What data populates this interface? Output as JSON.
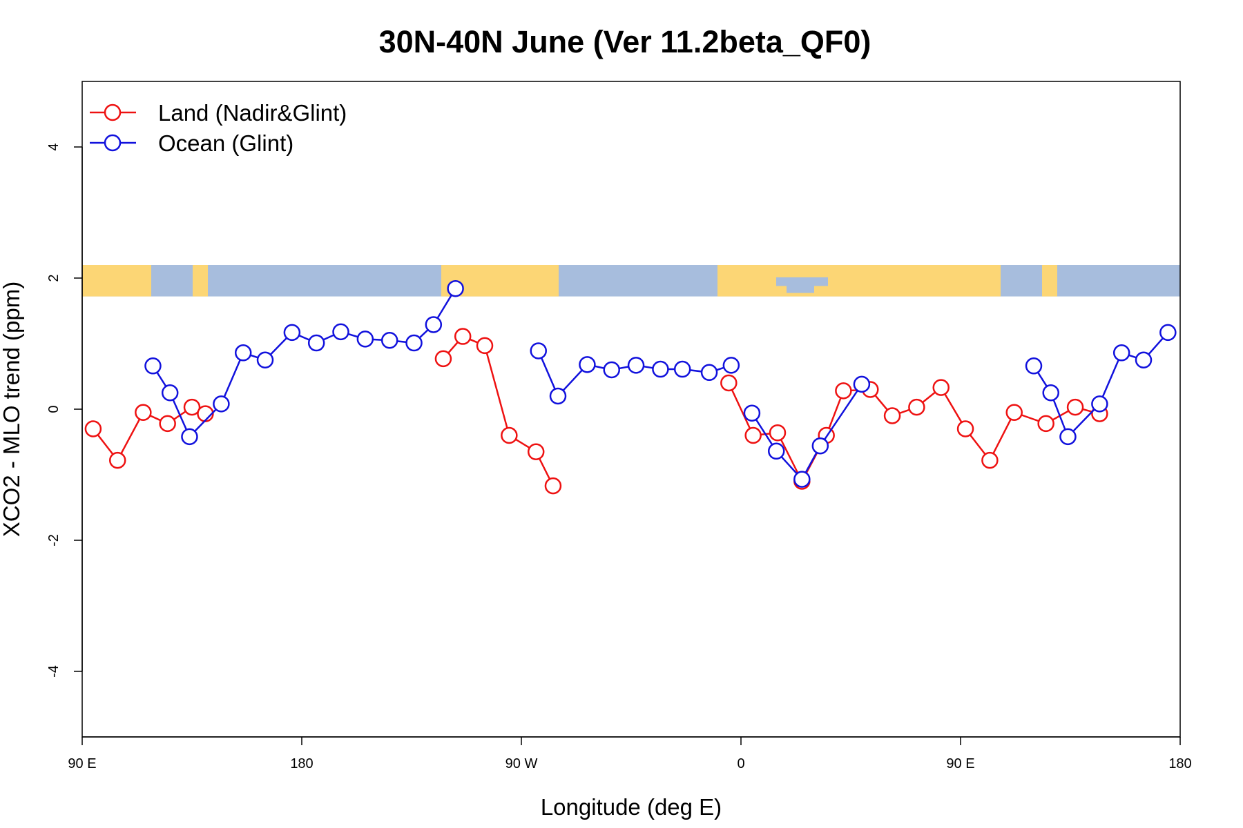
{
  "chart_data": {
    "type": "line",
    "title": "30N-40N June (Ver 11.2beta_QF0)",
    "xlabel": "Longitude (deg E)",
    "ylabel": "XCO2 - MLO trend (ppm)",
    "xlim": [
      90,
      540
    ],
    "ylim": [
      -5,
      5
    ],
    "x_ticks": [
      {
        "value": 90,
        "label": "90 E"
      },
      {
        "value": 180,
        "label": "180"
      },
      {
        "value": 270,
        "label": "90 W"
      },
      {
        "value": 360,
        "label": "0"
      },
      {
        "value": 450,
        "label": "90 E"
      },
      {
        "value": 540,
        "label": "180"
      }
    ],
    "y_ticks": [
      {
        "value": -4,
        "label": "-4"
      },
      {
        "value": -2,
        "label": "-2"
      },
      {
        "value": 0,
        "label": "0"
      },
      {
        "value": 2,
        "label": "2"
      },
      {
        "value": 4,
        "label": "4"
      }
    ],
    "grid": false,
    "legend_position": "top-left",
    "map_strip": {
      "y_range": [
        1.72,
        2.25
      ],
      "land_color": "#FCD675",
      "ocean_color": "#A7BDDD"
    },
    "series": [
      {
        "name": "Land (Nadir&Glint)",
        "color": "#EE1111",
        "segments": [
          {
            "x": [
              94.5,
              104.5,
              115,
              125,
              135,
              140.5
            ],
            "y": [
              -0.3,
              -0.78,
              -0.05,
              -0.22,
              0.03,
              -0.07
            ]
          },
          {
            "x": [
              238,
              246,
              255,
              265,
              276,
              283
            ],
            "y": [
              0.77,
              1.11,
              0.97,
              -0.4,
              -0.65,
              -1.17
            ]
          },
          {
            "x": [
              355,
              365,
              375,
              385,
              395,
              402,
              413,
              422,
              432,
              442,
              452,
              462,
              472,
              485,
              497,
              507,
              513,
              519
            ],
            "y": [
              0.4,
              -0.4,
              -0.36,
              -1.1,
              -0.4,
              0.28,
              0.3,
              -0.1,
              0.03,
              0.33,
              -0.3,
              -0.78,
              -0.05,
              -0.22,
              0.03,
              -0.07,
              null,
              null
            ]
          }
        ]
      },
      {
        "name": "Ocean (Glint)",
        "color": "#1111DD",
        "segments": [
          {
            "x": [
              119,
              126,
              134,
              147,
              156,
              165,
              176,
              186,
              196,
              206,
              216,
              226,
              234,
              243
            ],
            "y": [
              0.66,
              0.25,
              -0.42,
              0.08,
              0.86,
              0.75,
              1.17,
              1.01,
              1.18,
              1.07,
              1.05,
              1.01,
              1.29,
              1.84
            ]
          },
          {
            "x": [
              277,
              285,
              297,
              307,
              317,
              327,
              336,
              347,
              356
            ],
            "y": [
              0.89,
              0.2,
              0.68,
              0.6,
              0.67,
              0.61,
              0.61,
              0.56,
              0.67
            ]
          },
          {
            "x": [
              364.5,
              374.5,
              385,
              392.5,
              409.5
            ],
            "y": [
              -0.06,
              -0.64,
              -1.07,
              -0.56,
              0.38
            ]
          },
          {
            "x": [
              480,
              487,
              494,
              507,
              516,
              525,
              535
            ],
            "y": [
              0.66,
              0.25,
              -0.42,
              0.08,
              0.86,
              0.75,
              1.17
            ]
          }
        ]
      }
    ]
  }
}
